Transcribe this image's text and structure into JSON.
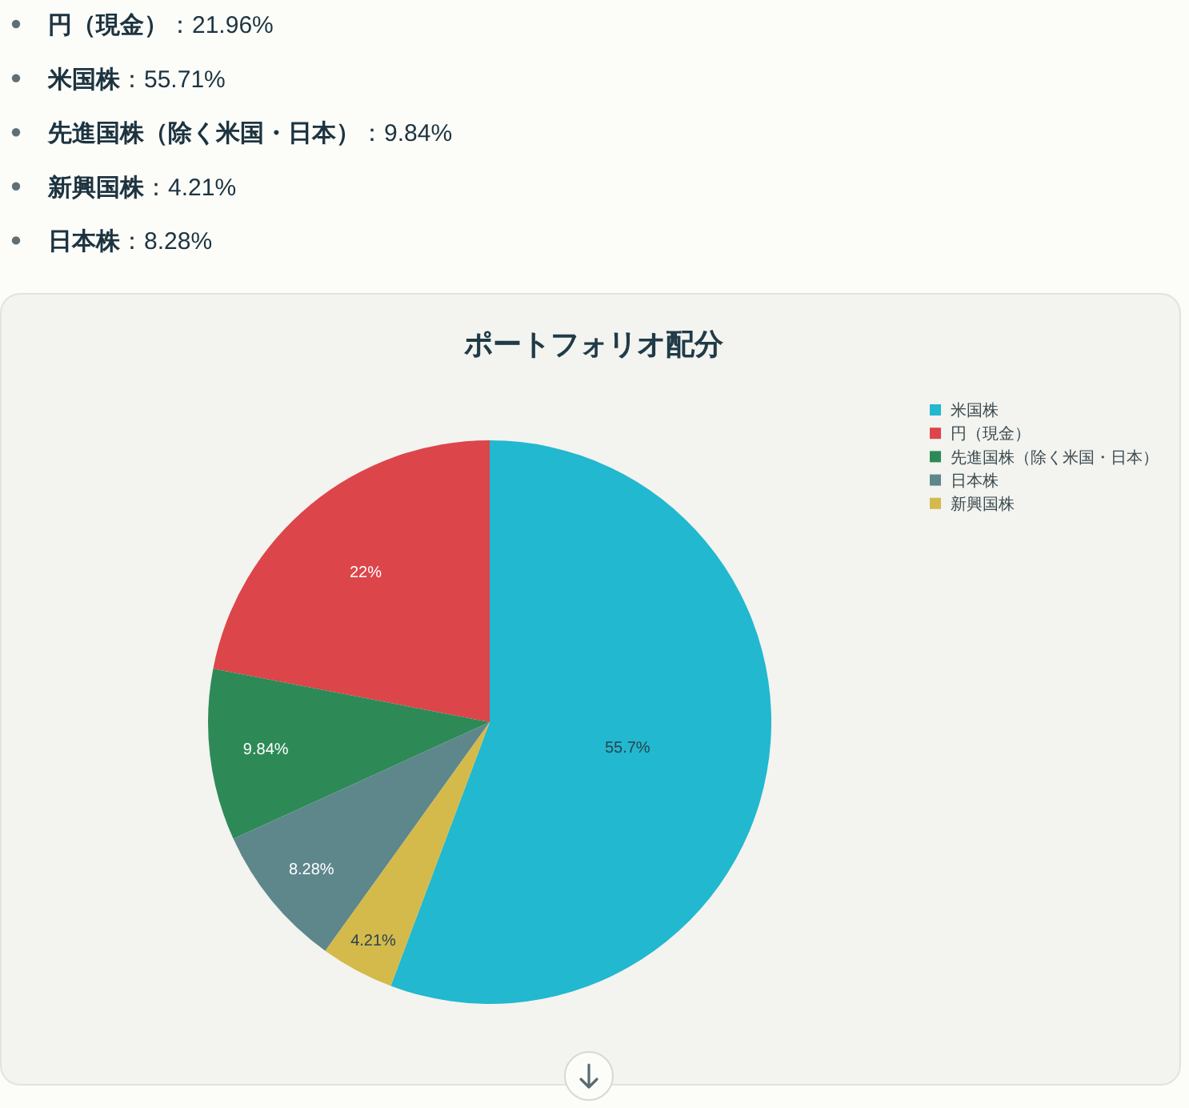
{
  "chart_data": {
    "type": "pie",
    "title": "ポートフォリオ配分",
    "categories": [
      "米国株",
      "円（現金）",
      "先進国株（除く米国・日本）",
      "日本株",
      "新興国株"
    ],
    "values": [
      55.71,
      21.96,
      9.84,
      8.28,
      4.21
    ],
    "colors": [
      "#22b8cf",
      "#dc4549",
      "#2d8a57",
      "#5e878c",
      "#d4b94b"
    ],
    "value_labels": [
      "55.7%",
      "22%",
      "9.84%",
      "8.28%",
      "4.21%"
    ],
    "legend": "top right",
    "annotations": [
      "円（現金）：21.96%",
      "米国株：55.71%",
      "先進国株（除く米国・日本）：9.84%",
      "新興国株：4.21%",
      "日本株：8.28%"
    ]
  }
}
